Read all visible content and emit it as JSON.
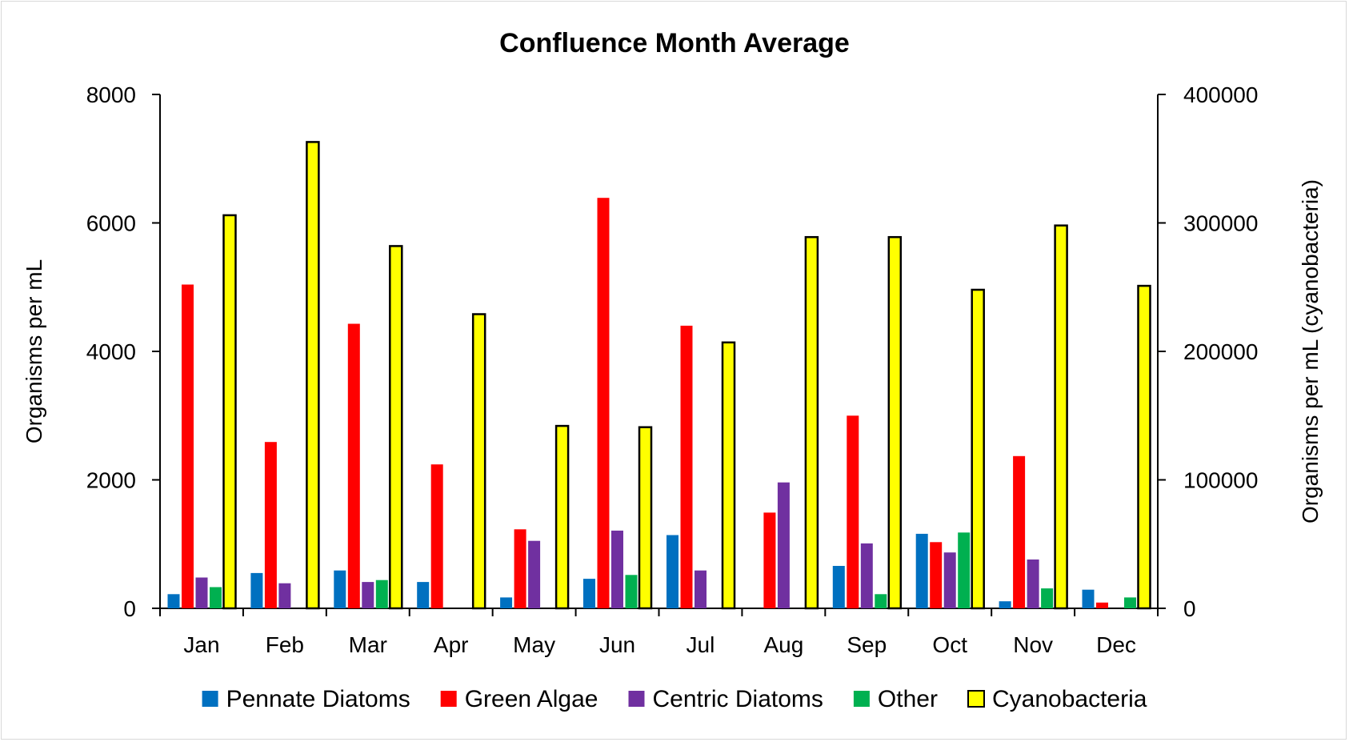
{
  "chart_data": {
    "type": "bar",
    "title": "Confluence Month Average",
    "categories": [
      "Jan",
      "Feb",
      "Mar",
      "Apr",
      "May",
      "Jun",
      "Jul",
      "Aug",
      "Sep",
      "Oct",
      "Nov",
      "Dec"
    ],
    "ylabel": "Organisms per mL",
    "y2label": "Organisms per mL (cyanobacteria)",
    "ylim": [
      0,
      8000
    ],
    "y2lim": [
      0,
      400000
    ],
    "yticks": [
      "0",
      "2000",
      "4000",
      "6000",
      "8000"
    ],
    "y2ticks": [
      "0",
      "100000",
      "200000",
      "300000",
      "400000"
    ],
    "grid": false,
    "legend_position": "bottom",
    "series": [
      {
        "name": "Pennate Diatoms",
        "axis": "left",
        "color": "#0070c0",
        "values": [
          220,
          550,
          590,
          410,
          170,
          460,
          1140,
          0,
          660,
          1160,
          110,
          290
        ]
      },
      {
        "name": "Green Algae",
        "axis": "left",
        "color": "#ff0000",
        "values": [
          5040,
          2590,
          4430,
          2240,
          1230,
          6390,
          4400,
          1490,
          3000,
          1030,
          2370,
          90
        ]
      },
      {
        "name": "Centric Diatoms",
        "axis": "left",
        "color": "#7030a0",
        "values": [
          480,
          390,
          410,
          0,
          1050,
          1210,
          590,
          1960,
          1010,
          870,
          760,
          0
        ]
      },
      {
        "name": "Other",
        "axis": "left",
        "color": "#00b050",
        "values": [
          330,
          0,
          440,
          0,
          0,
          520,
          0,
          0,
          220,
          1180,
          310,
          170
        ]
      },
      {
        "name": "Cyanobacteria",
        "axis": "right",
        "color": "#ffff00",
        "stroke": "#000000",
        "values": [
          306000,
          363000,
          282000,
          229000,
          142000,
          141000,
          207000,
          289000,
          289000,
          248000,
          298000,
          251000
        ]
      }
    ]
  }
}
